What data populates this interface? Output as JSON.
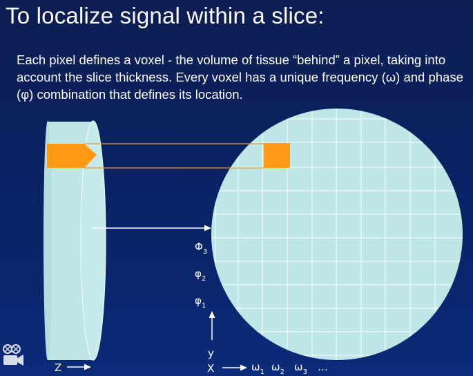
{
  "slide": {
    "title": "To localize signal within a slice:",
    "body": "Each pixel defines a voxel - the volume of tissue “behind” a pixel, taking into account the slice thickness.  Every voxel has a unique frequency (ω) and phase (φ) combination that defines its location."
  },
  "diagram": {
    "colors": {
      "tissue": "#bfe6e6",
      "voxel": "#ff9a14",
      "grid": "#ffffff",
      "background": "#0a2366"
    },
    "labels": {
      "phi7": "Φ",
      "phi7_sub": "7",
      "omega2_top": "ω",
      "omega2_top_sub": "2",
      "phi3": "Φ",
      "phi3_sub": "3",
      "phi2": "φ",
      "phi2_sub": "2",
      "phi1": "φ",
      "phi1_sub": "1",
      "y_axis": "y",
      "z_axis": "Z",
      "x_axis": "X",
      "w1": "ω",
      "w1_sub": "1",
      "w2": "ω",
      "w2_sub": "2",
      "w3": "ω",
      "w3_sub": "3",
      "ellipsis": "…"
    },
    "icons": [
      "projector-icon"
    ]
  }
}
